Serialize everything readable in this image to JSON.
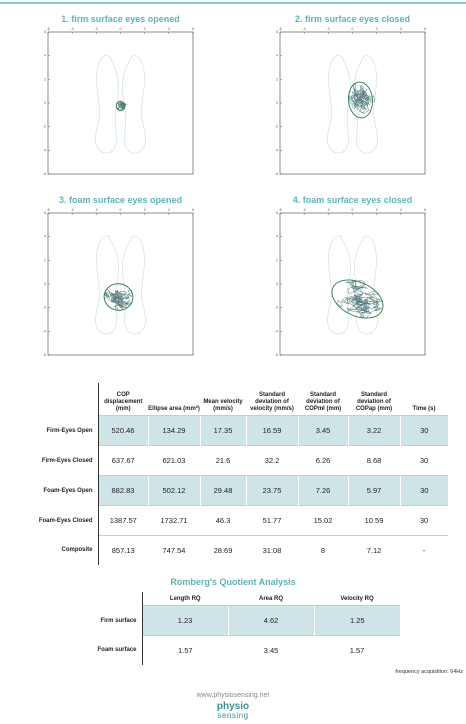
{
  "panels": [
    {
      "title": "1. firm surface eyes opened"
    },
    {
      "title": "2. firm surface eyes closed"
    },
    {
      "title": "3. foam surface eyes opened"
    },
    {
      "title": "4. foam surface eyes closed"
    }
  ],
  "axis_ticks": [
    -6,
    -4,
    -2,
    0,
    2,
    4,
    6
  ],
  "results_table": {
    "columns": [
      "COP displacement (mm)",
      "Ellipse area (mm²)",
      "Mean velocity (mm/s)",
      "Standard deviation of velocity (mm/s)",
      "Standard deviation of COPml (mm)",
      "Standard deviation of COPap (mm)",
      "Time (s)"
    ],
    "rows": [
      {
        "label": "Firm-Eyes Open",
        "values": [
          520.46,
          134.29,
          17.35,
          16.59,
          3.45,
          3.22,
          30
        ]
      },
      {
        "label": "Firm-Eyes Closed",
        "values": [
          637.67,
          621.03,
          21.6,
          32.2,
          6.26,
          8.68,
          30
        ]
      },
      {
        "label": "Foam-Eyes Open",
        "values": [
          882.83,
          502.12,
          29.48,
          23.75,
          7.26,
          5.97,
          30
        ]
      },
      {
        "label": "Foam-Eyes Closed",
        "values": [
          1387.57,
          1732.71,
          46.3,
          51.77,
          15.02,
          10.59,
          30
        ]
      },
      {
        "label": "Composite",
        "values": [
          857.13,
          747.54,
          28.69,
          31.08,
          8,
          7.12,
          "-"
        ]
      }
    ]
  },
  "romberg": {
    "title": "Romberg's Quotient Analysis",
    "columns": [
      "Length RQ",
      "Area RQ",
      "Velocity RQ"
    ],
    "rows": [
      {
        "label": "Firm surface",
        "values": [
          1.23,
          4.62,
          1.25
        ]
      },
      {
        "label": "Foam surface",
        "values": [
          1.57,
          3.45,
          1.57
        ]
      }
    ]
  },
  "note": "frequency acquisition: 64Hz",
  "footer": {
    "url": "www.physiosensing.net",
    "logo_top": "physio",
    "logo_bottom": "sensing"
  }
}
